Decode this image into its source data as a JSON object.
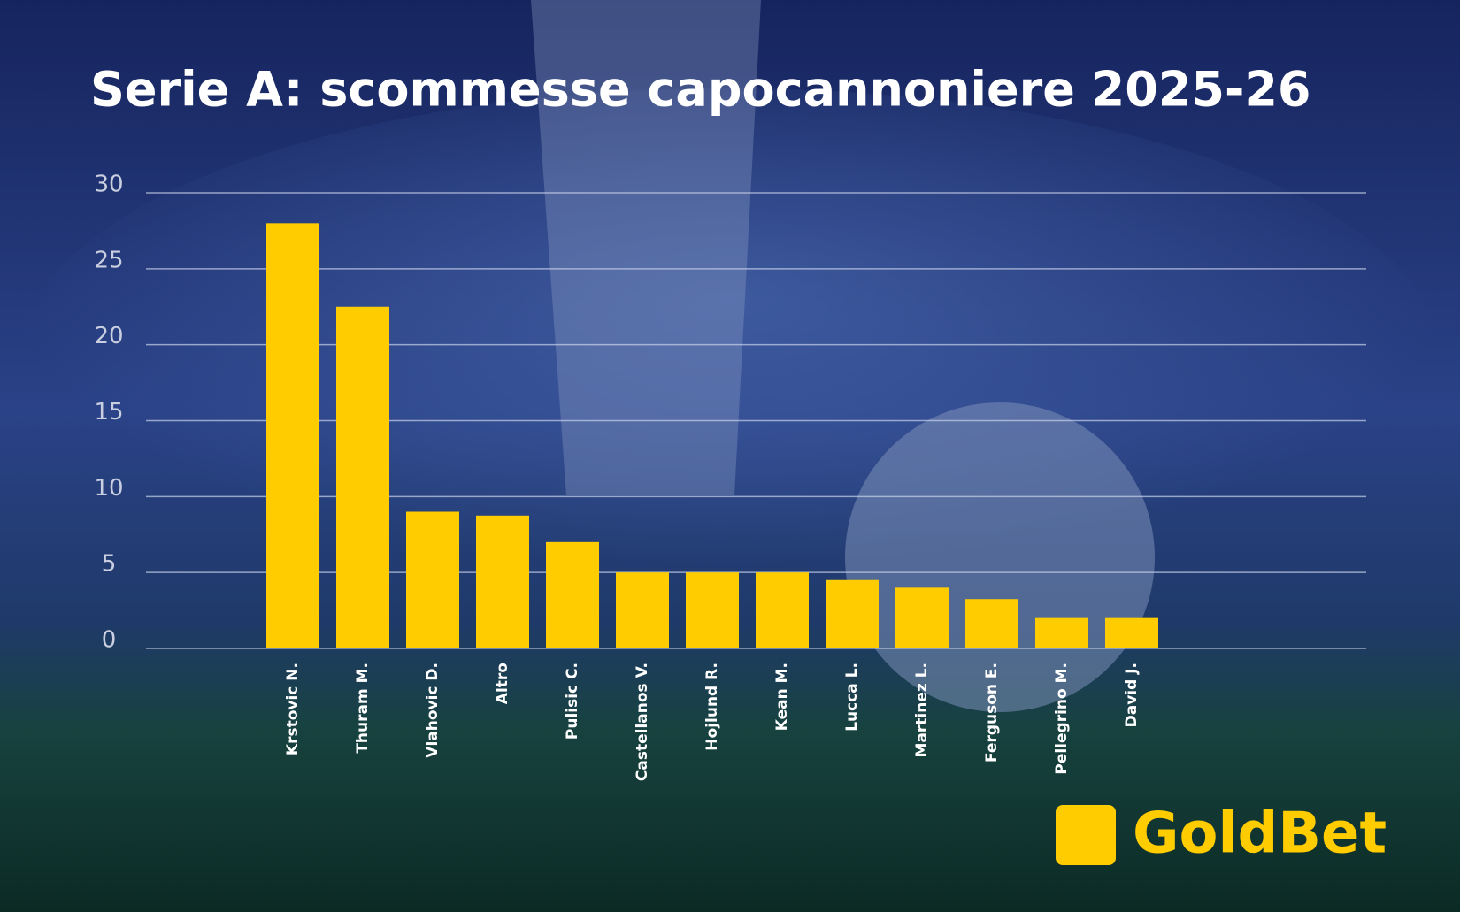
{
  "chart_data": {
    "type": "bar",
    "title": "Serie A: scommesse capocannoniere 2025-26",
    "categories": [
      "Krstovic N.",
      "Thuram M.",
      "Vlahovic D.",
      "Altro",
      "Pulisic C.",
      "Castellanos V.",
      "Hojlund R.",
      "Kean M.",
      "Lucca L.",
      "Martinez L.",
      "Ferguson E.",
      "Pellegrino M.",
      "David J."
    ],
    "values": [
      28,
      22.5,
      9,
      8.75,
      7,
      5,
      5,
      5,
      4.5,
      4,
      3.25,
      2,
      2
    ],
    "color": "#ffcc00",
    "ylim": [
      0,
      30
    ],
    "yticks": [
      0,
      5,
      10,
      15,
      20,
      25,
      30
    ],
    "grid": true
  },
  "brand": "GoldBet"
}
